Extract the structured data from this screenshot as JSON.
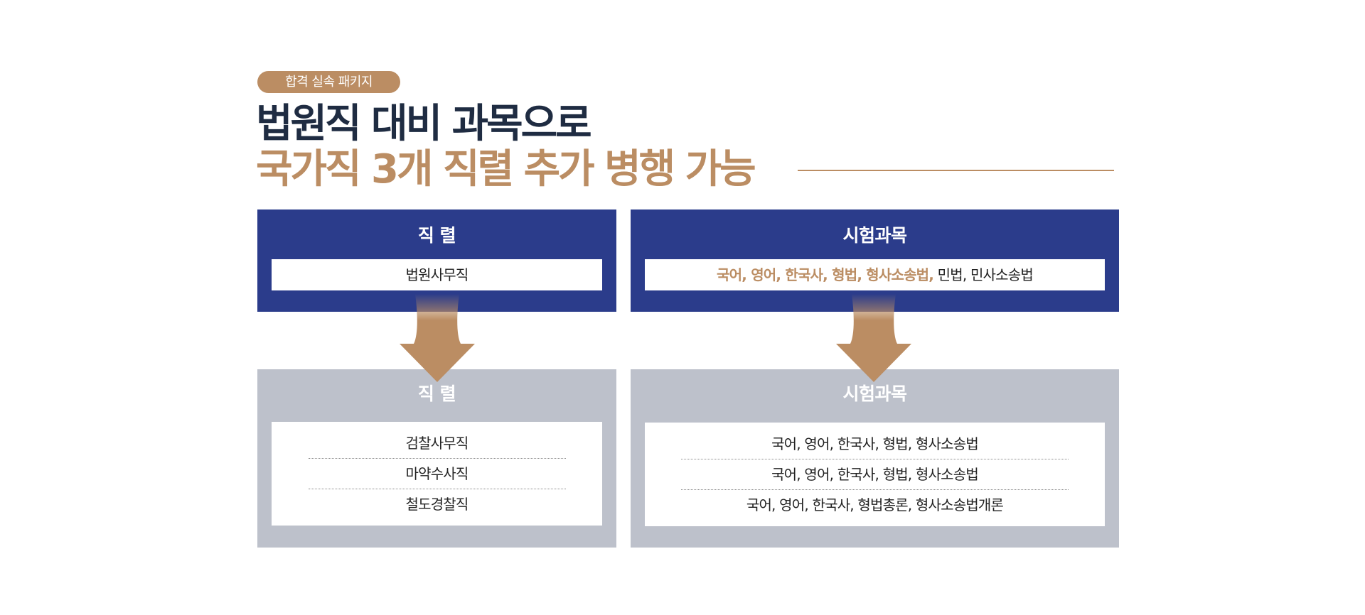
{
  "badge": "합격 실속 패키지",
  "title": {
    "line1": "법원직 대비 과목으로",
    "line2": "국가직 3개 직렬 추가 병행 가능"
  },
  "top_left": {
    "heading": "직 렬",
    "value": "법원사무직"
  },
  "top_right": {
    "heading": "시험과목",
    "highlighted": "국어, 영어, 한국사, 형법, 형사소송법,",
    "rest": " 민법, 민사소송법"
  },
  "bottom_left": {
    "heading": "직 렬",
    "items": [
      "검찰사무직",
      "마약수사직",
      "철도경찰직"
    ]
  },
  "bottom_right": {
    "heading": "시험과목",
    "items": [
      "국어, 영어, 한국사, 형법, 형사소송법",
      "국어, 영어, 한국사, 형법, 형사소송법",
      "국어, 영어, 한국사, 형법총론, 형사소송법개론"
    ]
  },
  "colors": {
    "navy": "#2b3c8b",
    "gold": "#bb8d63",
    "gray": "#bdc1cb",
    "title_dark": "#1f2c42"
  }
}
